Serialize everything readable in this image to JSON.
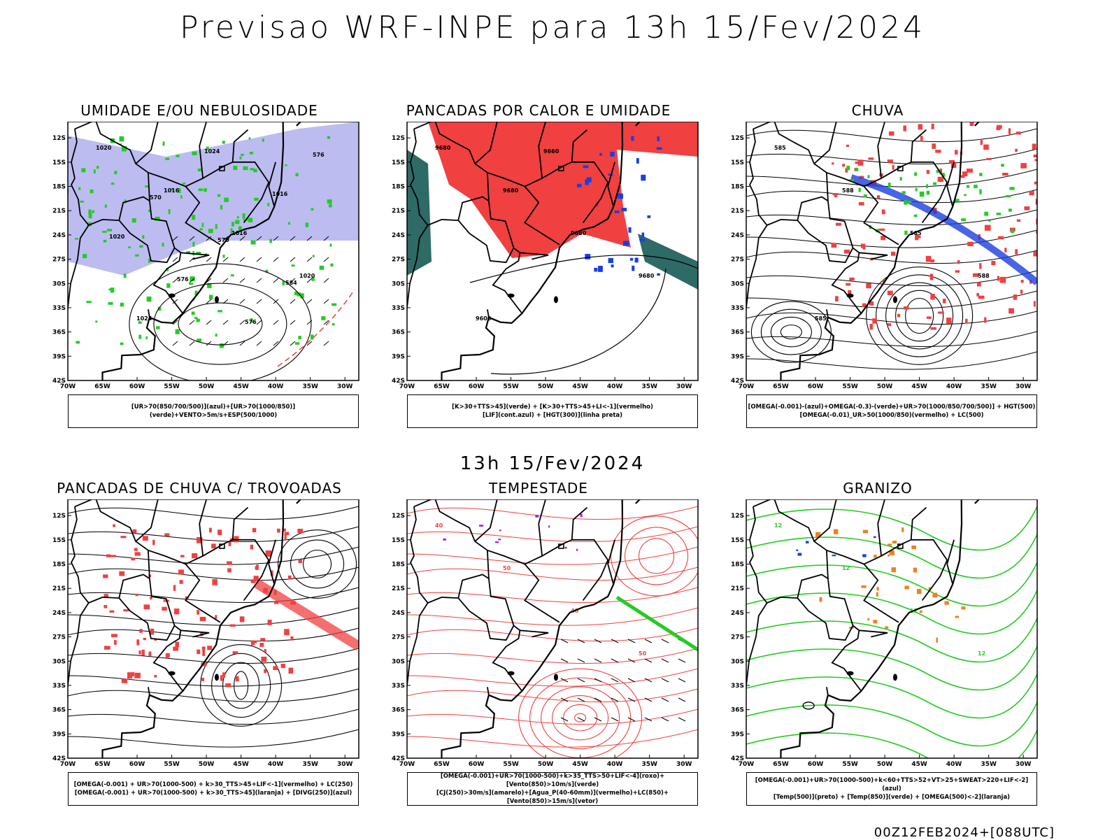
{
  "title": "Previsao WRF-INPE  para 13h 15/Fev/2024",
  "mid_title": "13h 15/Fev/2024",
  "footer": "00Z12FEB2024+[088UTC]",
  "axes": {
    "lat_labels": [
      "12S",
      "15S",
      "18S",
      "21S",
      "24S",
      "27S",
      "30S",
      "33S",
      "36S",
      "39S",
      "42S"
    ],
    "lon_labels": [
      "70W",
      "65W",
      "60W",
      "55W",
      "50W",
      "45W",
      "40W",
      "35W",
      "30W"
    ]
  },
  "colors": {
    "red": "#f04040",
    "green": "#22cc22",
    "blue": "#1a3fe0",
    "lavender": "#b0b0ee",
    "teal": "#2e6a66",
    "orange": "#f08020",
    "purple": "#a020e0"
  },
  "panels": [
    {
      "title": "UMIDADE E/OU NEBULOSIDADE",
      "legend": [
        "[UR>70(850/700/500)](azul)+[UR>70(1000/850)](verde)+VENTO>5m/s+ESP(500/1000)"
      ],
      "labels": [
        "1020",
        "1016",
        "1016",
        "1020",
        "1024",
        "1024",
        "1016",
        "1020",
        "576",
        "576",
        "576",
        "570",
        "570",
        "584"
      ]
    },
    {
      "title": "PANCADAS POR CALOR E UMIDADE",
      "legend": [
        "[K>30+TTS>45](verde) + [K>30+TTS>45+LI<-1](vermelho)",
        "[LIF](cont.azul) + [HGT(300)](linha preta)"
      ],
      "labels": [
        "9680",
        "9680",
        "9680",
        "9680",
        "9600",
        "9660"
      ]
    },
    {
      "title": "CHUVA",
      "legend": [
        "[OMEGA(-0.001)-(azul)+OMEGA(-0.3)-(verde)+UR>70(1000/850/700/500)] + HGT(500)",
        "[OMEGA(-0.01)_UR>50(1000/850)(vermelho) + LC(500)"
      ],
      "labels": [
        "585",
        "588",
        "585",
        "588",
        "585"
      ]
    },
    {
      "title": "PANCADAS DE CHUVA C/ TROVOADAS",
      "legend": [
        "[OMEGA(-0.001) + UR>70(1000-500) + k>30_TTS>45+LIF<-1](vermelho) + LC(250)",
        "[OMEGA(-0.001) + UR>70(1000-500) + k>30_TTS>45](laranja) + [DIVG(250)](azul)"
      ],
      "labels": []
    },
    {
      "title": "TEMPESTADE",
      "legend": [
        "[OMEGA(-0.001)+UR>70(1000-500)+k>35_TTS>50+LIF<-4](roxo)+[Vento(850)>10m/s](verde)",
        "[CJ(250)>30m/s](amarelo)+[Agua_P(40-60mm)](vermelho)+LC(850)+[Vento(850)>15m/s](vetor)"
      ],
      "labels": [
        "40",
        "50",
        "40",
        "50"
      ]
    },
    {
      "title": "GRANIZO",
      "legend": [
        "[OMEGA(-0.001)+UR>70(1000-500)+k<60+TTS>52+VT>25+SWEAT>220+LIF<-2](azul)",
        "[Temp(500)](preto) + [Temp(850)](verde) + [OMEGA(500)<-2](laranja)"
      ],
      "labels": [
        "12",
        "12",
        "12",
        "12"
      ]
    }
  ]
}
